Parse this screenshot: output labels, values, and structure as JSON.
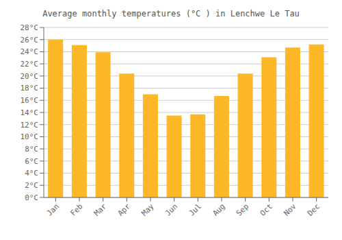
{
  "chart_data": {
    "type": "bar",
    "title": "Average monthly temperatures (°C ) in Lenchwe Le Tau",
    "categories": [
      "Jan",
      "Feb",
      "Mar",
      "Apr",
      "May",
      "Jun",
      "Jul",
      "Aug",
      "Sep",
      "Oct",
      "Nov",
      "Dec"
    ],
    "values": [
      26.0,
      25.1,
      23.9,
      20.4,
      17.0,
      13.5,
      13.7,
      16.7,
      20.4,
      23.1,
      24.7,
      25.2
    ],
    "color": "#FDB827",
    "ylim": [
      0,
      28
    ],
    "yticks": [
      {
        "value": 0,
        "label": "0°C"
      },
      {
        "value": 2,
        "label": "2°C"
      },
      {
        "value": 4,
        "label": "4°C"
      },
      {
        "value": 6,
        "label": "6°C"
      },
      {
        "value": 8,
        "label": "8°C"
      },
      {
        "value": 10,
        "label": "10°C"
      },
      {
        "value": 12,
        "label": "12°C"
      },
      {
        "value": 14,
        "label": "14°C"
      },
      {
        "value": 16,
        "label": "16°C"
      },
      {
        "value": 18,
        "label": "18°C"
      },
      {
        "value": 20,
        "label": "20°C"
      },
      {
        "value": 22,
        "label": "22°C"
      },
      {
        "value": 24,
        "label": "24°C"
      },
      {
        "value": 26,
        "label": "26°C"
      },
      {
        "value": 28,
        "label": "28°C"
      }
    ],
    "grid": true
  }
}
